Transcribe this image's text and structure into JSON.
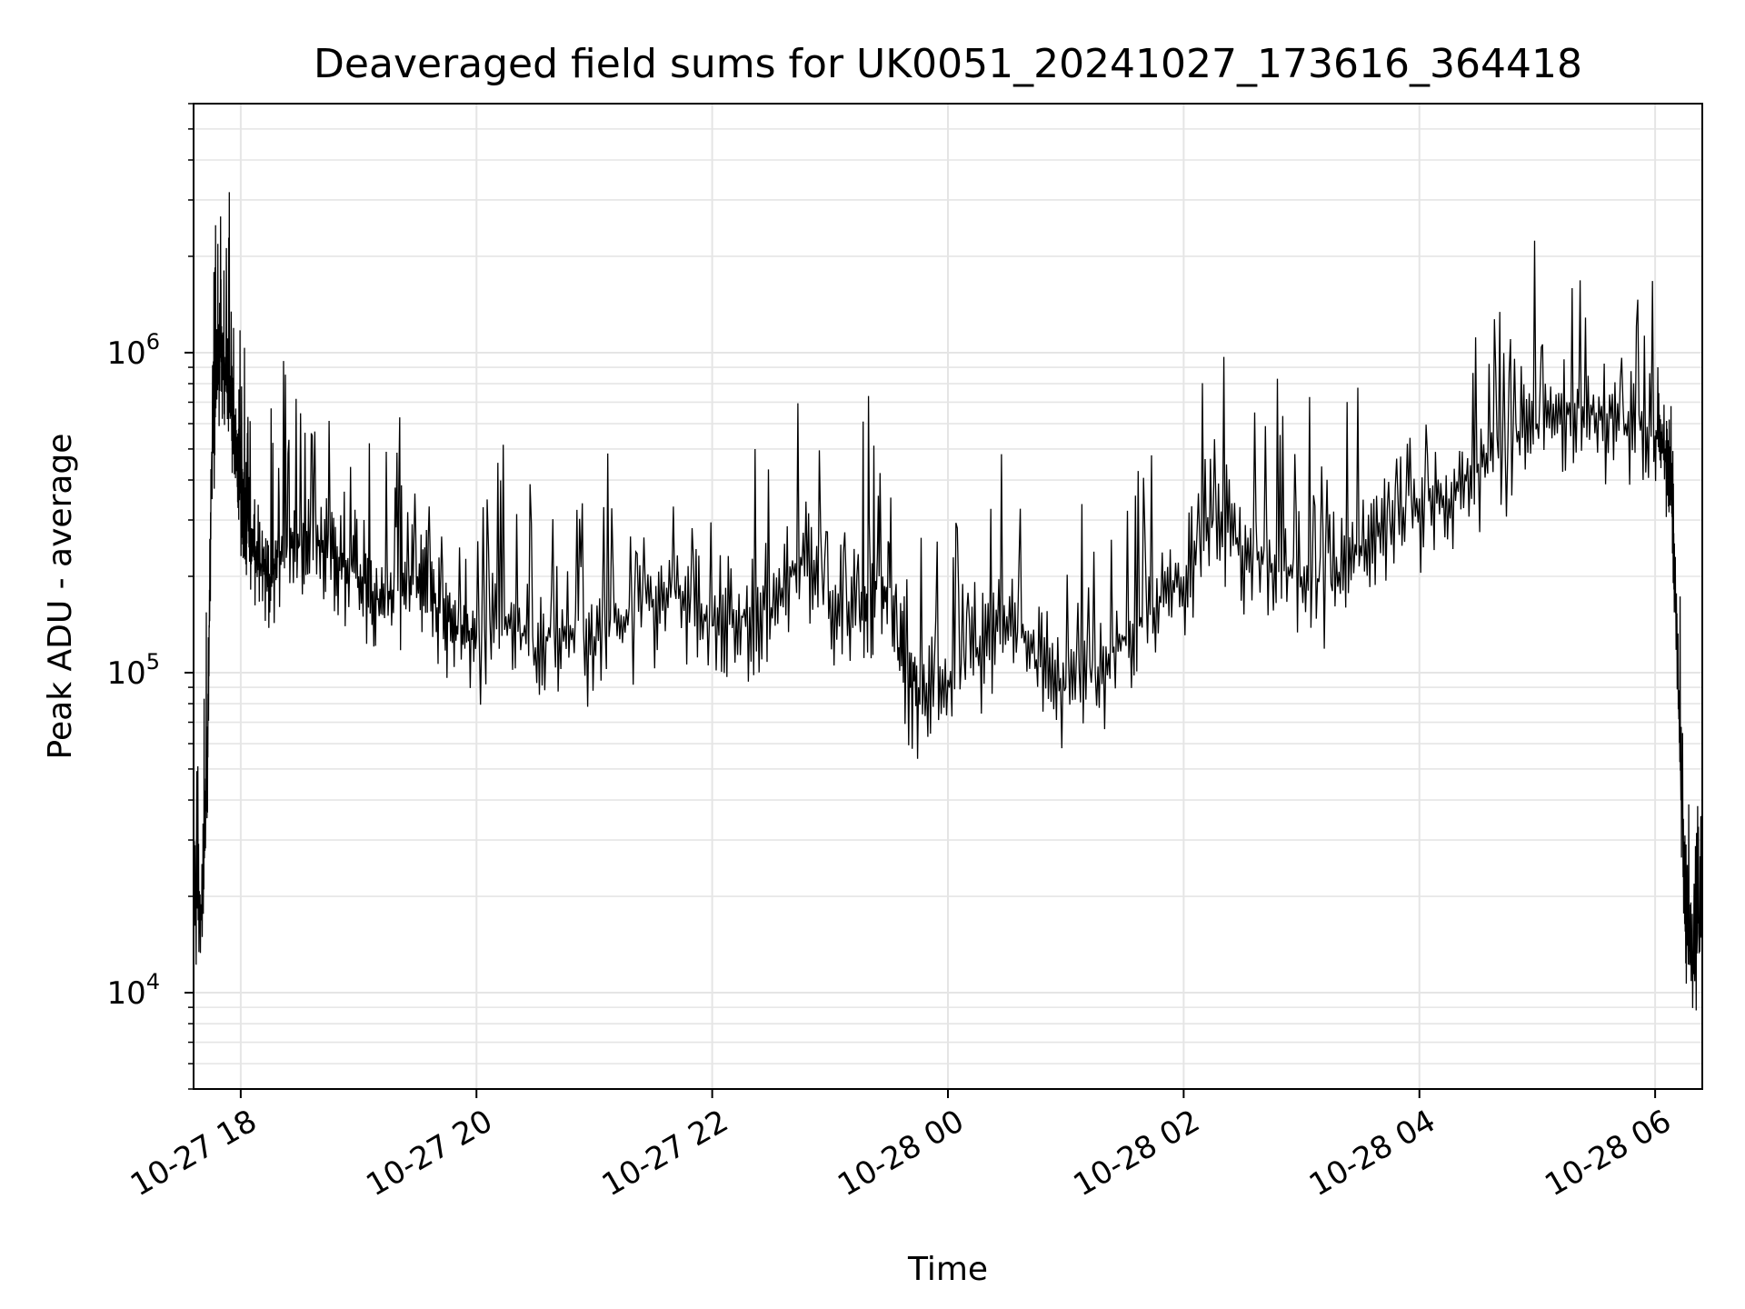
{
  "chart_data": {
    "type": "line",
    "title": "Deaveraged field sums for UK0051_20241027_173616_364418",
    "xlabel": "Time",
    "ylabel": "Peak ADU - average",
    "y_scale": "log",
    "xlim": [
      "2024-10-27 17:36",
      "2024-10-28 06:24"
    ],
    "ylim": [
      5000,
      6000000
    ],
    "grid": true,
    "line_color": "#000000",
    "grid_color": "#e5e5e5",
    "x_ticks": [
      {
        "value": "2024-10-27 18:00",
        "label": "10-27 18"
      },
      {
        "value": "2024-10-27 20:00",
        "label": "10-27 20"
      },
      {
        "value": "2024-10-27 22:00",
        "label": "10-27 22"
      },
      {
        "value": "2024-10-28 00:00",
        "label": "10-28 00"
      },
      {
        "value": "2024-10-28 02:00",
        "label": "10-28 02"
      },
      {
        "value": "2024-10-28 04:00",
        "label": "10-28 04"
      },
      {
        "value": "2024-10-28 06:00",
        "label": "10-28 06"
      }
    ],
    "y_ticks": [
      {
        "value": 10000,
        "base": "10",
        "exp": "4"
      },
      {
        "value": 100000,
        "base": "10",
        "exp": "5"
      },
      {
        "value": 1000000,
        "base": "10",
        "exp": "6"
      }
    ],
    "series": [
      {
        "x": [
          "2024-10-27 17:36",
          "2024-10-27 17:40",
          "2024-10-27 17:43",
          "2024-10-27 17:45",
          "2024-10-27 17:48",
          "2024-10-27 17:50",
          "2024-10-27 17:52",
          "2024-10-27 17:55",
          "2024-10-27 17:58",
          "2024-10-27 18:00",
          "2024-10-27 18:03",
          "2024-10-27 18:06",
          "2024-10-27 18:10",
          "2024-10-27 18:15",
          "2024-10-27 18:20",
          "2024-10-27 18:30",
          "2024-10-27 18:40",
          "2024-10-27 18:50",
          "2024-10-27 19:00",
          "2024-10-27 19:10",
          "2024-10-27 19:20",
          "2024-10-27 19:30",
          "2024-10-27 19:40",
          "2024-10-27 19:50",
          "2024-10-27 20:00",
          "2024-10-27 20:15",
          "2024-10-27 20:30",
          "2024-10-27 20:45",
          "2024-10-27 21:00",
          "2024-10-27 21:15",
          "2024-10-27 21:30",
          "2024-10-27 21:45",
          "2024-10-27 22:00",
          "2024-10-27 22:15",
          "2024-10-27 22:30",
          "2024-10-27 22:45",
          "2024-10-27 23:00",
          "2024-10-27 23:15",
          "2024-10-27 23:25",
          "2024-10-27 23:35",
          "2024-10-27 23:45",
          "2024-10-28 00:00",
          "2024-10-28 00:15",
          "2024-10-28 00:30",
          "2024-10-28 00:45",
          "2024-10-28 01:00",
          "2024-10-28 01:15",
          "2024-10-28 01:30",
          "2024-10-28 01:45",
          "2024-10-28 02:00",
          "2024-10-28 02:15",
          "2024-10-28 02:30",
          "2024-10-28 02:45",
          "2024-10-28 03:00",
          "2024-10-28 03:15",
          "2024-10-28 03:30",
          "2024-10-28 03:45",
          "2024-10-28 04:00",
          "2024-10-28 04:15",
          "2024-10-28 04:30",
          "2024-10-28 04:45",
          "2024-10-28 05:00",
          "2024-10-28 05:15",
          "2024-10-28 05:30",
          "2024-10-28 05:45",
          "2024-10-28 06:00",
          "2024-10-28 06:05",
          "2024-10-28 06:08",
          "2024-10-28 06:10",
          "2024-10-28 06:13",
          "2024-10-28 06:16",
          "2024-10-28 06:20",
          "2024-10-28 06:24"
        ],
        "y": [
          20000,
          18000,
          50000,
          400000,
          900000,
          1000000,
          850000,
          700000,
          500000,
          400000,
          300000,
          250000,
          220000,
          200000,
          240000,
          250000,
          260000,
          230000,
          200000,
          170000,
          180000,
          200000,
          160000,
          140000,
          130000,
          150000,
          120000,
          140000,
          130000,
          150000,
          170000,
          180000,
          140000,
          150000,
          160000,
          230000,
          180000,
          150000,
          200000,
          120000,
          90000,
          95000,
          120000,
          150000,
          110000,
          90000,
          100000,
          130000,
          160000,
          200000,
          300000,
          250000,
          220000,
          200000,
          190000,
          250000,
          300000,
          350000,
          350000,
          450000,
          500000,
          600000,
          700000,
          650000,
          600000,
          550000,
          500000,
          400000,
          200000,
          50000,
          15000,
          12000,
          18000
        ]
      }
    ]
  }
}
